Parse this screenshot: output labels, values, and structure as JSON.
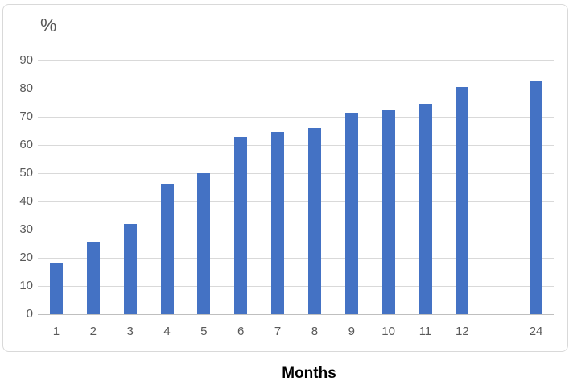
{
  "chart": {
    "bar_color": "#4472C4",
    "gridline_color": "#D9D9D9",
    "axis_line_color": "#BFBFBF",
    "tick_label_color": "#595959",
    "border_color": "#D9D9D9"
  },
  "chart_data": {
    "type": "bar",
    "title": "",
    "xlabel": "Months",
    "ylabel": "%",
    "categories": [
      "1",
      "2",
      "3",
      "4",
      "5",
      "6",
      "7",
      "8",
      "9",
      "10",
      "11",
      "12",
      "",
      "24"
    ],
    "values": [
      18,
      25.5,
      32,
      46,
      50,
      63,
      64.5,
      66,
      71.5,
      72.5,
      74.5,
      80.5,
      null,
      82.5
    ],
    "yticks": [
      0,
      10,
      20,
      30,
      40,
      50,
      60,
      70,
      80,
      90
    ],
    "ylim": [
      0,
      90
    ],
    "grid": true,
    "legend": false,
    "gap_note": "empty category slot between 12 and 24"
  }
}
